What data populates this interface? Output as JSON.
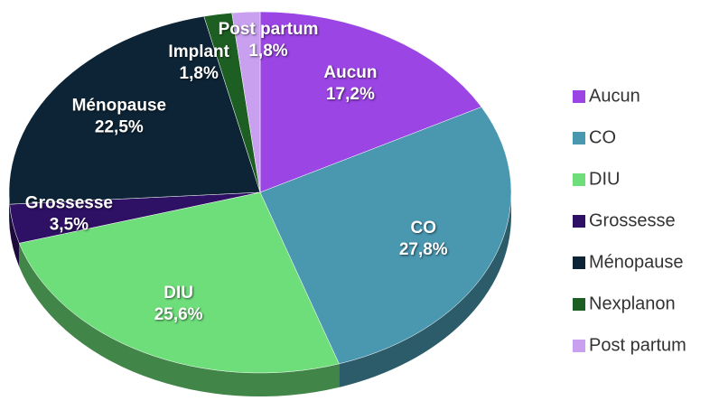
{
  "chart_data": {
    "type": "pie",
    "categories": [
      "Aucun",
      "CO",
      "DIU",
      "Grossesse",
      "Ménopause",
      "Nexplanon",
      "Post partum"
    ],
    "slice_labels": [
      "Aucun",
      "CO",
      "DIU",
      "Grossesse",
      "Ménopause",
      "Implant",
      "Post partum"
    ],
    "values": [
      17.2,
      27.8,
      25.6,
      3.5,
      22.5,
      1.8,
      1.8
    ],
    "value_labels": [
      "17,2%",
      "27,8%",
      "25,6%",
      "3,5%",
      "22,5%",
      "1,8%",
      "1,8%"
    ],
    "colors": [
      "#9b45e4",
      "#4a97b0",
      "#6ede7a",
      "#2e1065",
      "#0d2436",
      "#1d5e22",
      "#c9a0f0"
    ],
    "legend": "right"
  }
}
